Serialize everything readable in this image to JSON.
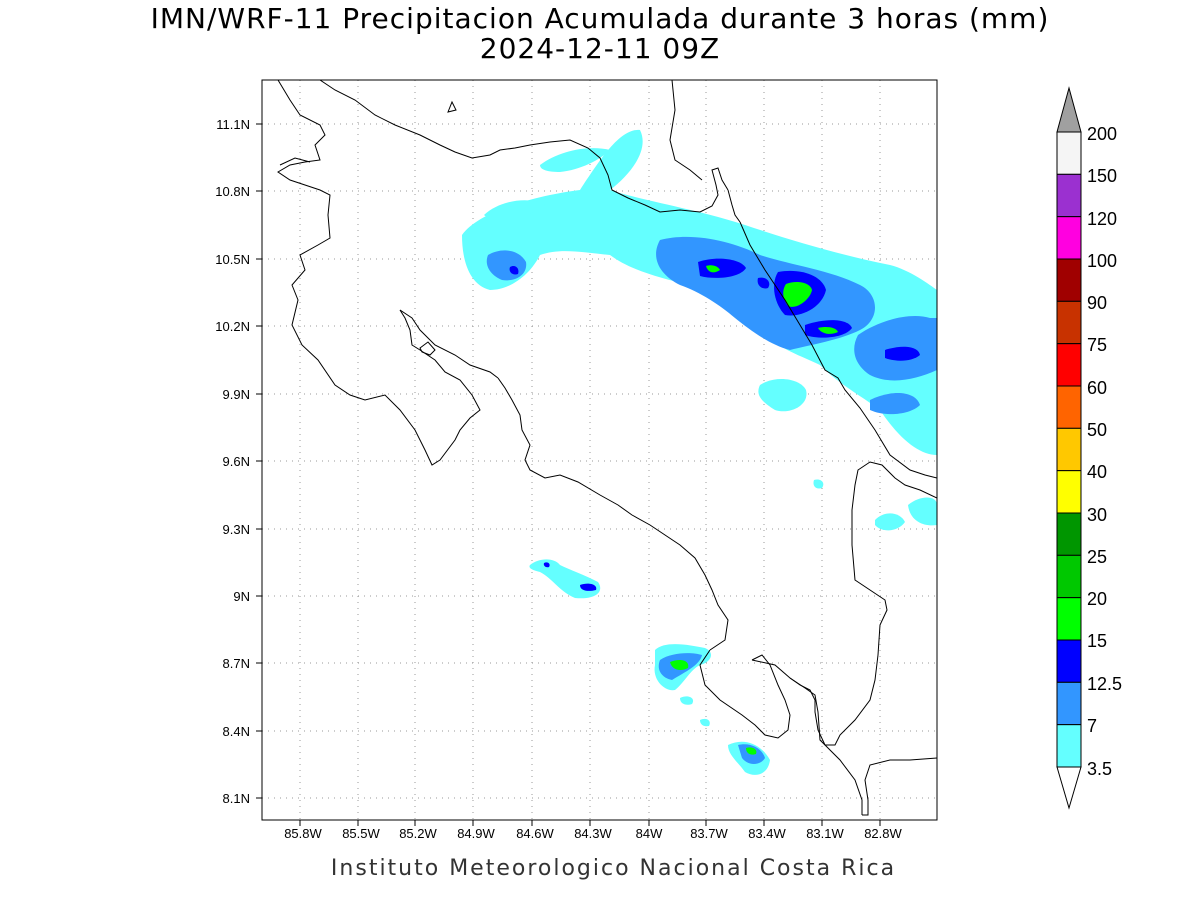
{
  "title_line1": "IMN/WRF-11 Precipitacion Acumulada durante 3 horas (mm)",
  "title_line2": "2024-12-11 09Z",
  "footer": "Instituto Meteorologico Nacional Costa Rica",
  "map": {
    "lon_ticks": [
      "85.8W",
      "85.5W",
      "85.2W",
      "84.9W",
      "84.6W",
      "84.3W",
      "84W",
      "83.7W",
      "83.4W",
      "83.1W",
      "82.8W"
    ],
    "lat_ticks": [
      "11.1N",
      "10.8N",
      "10.5N",
      "10.2N",
      "9.9N",
      "9.6N",
      "9.3N",
      "9N",
      "8.7N",
      "8.4N",
      "8.1N"
    ],
    "gridlines": "dotted"
  },
  "colorbar": {
    "labels": [
      "200",
      "150",
      "120",
      "100",
      "90",
      "75",
      "60",
      "50",
      "40",
      "30",
      "25",
      "20",
      "15",
      "12.5",
      "7",
      "3.5"
    ],
    "colors": [
      "#f5f5f5",
      "#9b30d0",
      "#ff00e0",
      "#a00000",
      "#c83200",
      "#ff0000",
      "#ff6400",
      "#ffc800",
      "#ffff00",
      "#009600",
      "#00c800",
      "#00ff00",
      "#0000ff",
      "#3296ff",
      "#64ffff"
    ],
    "over_color": "#a0a0a0"
  },
  "precip_colors": {
    "light": "#64ffff",
    "moderate": "#3296ff",
    "heavy": "#0000ff",
    "intense": "#00ff00"
  }
}
